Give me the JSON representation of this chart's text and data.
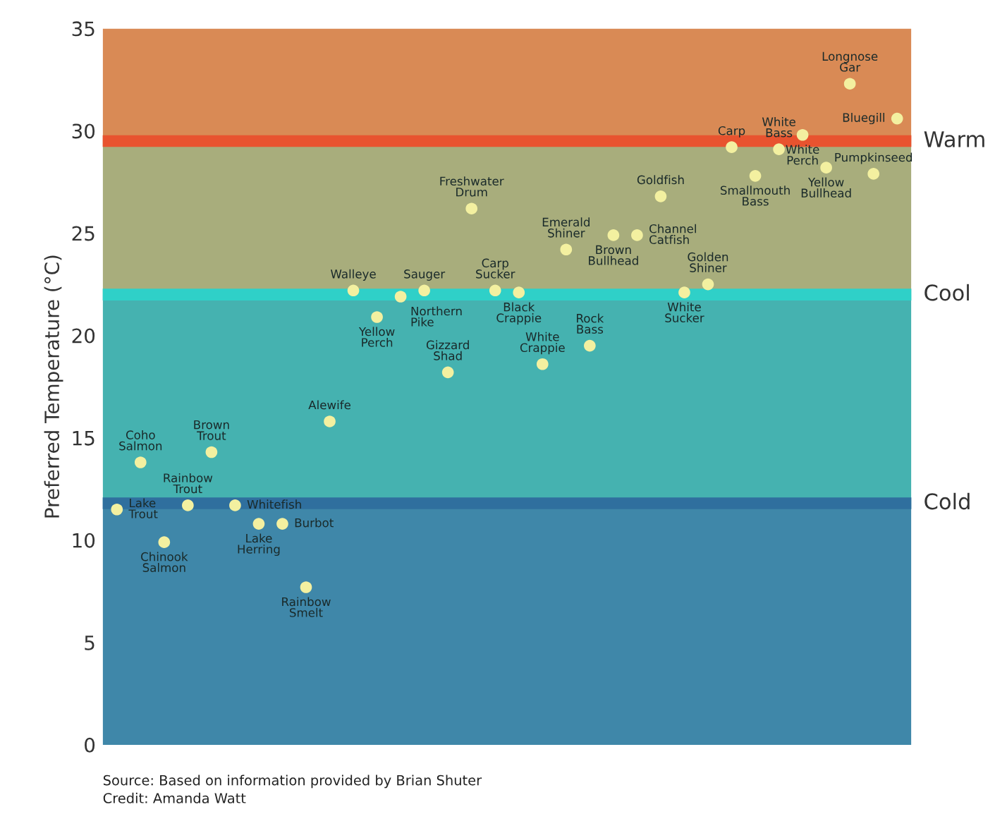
{
  "chart_data": {
    "type": "scatter",
    "ylabel": "Preferred Temperature (°C)",
    "categories": [
      null,
      null,
      null,
      null,
      null,
      null,
      null,
      null,
      null,
      null,
      null,
      null,
      null,
      null,
      null,
      null,
      null,
      null,
      null,
      null,
      null,
      null,
      null,
      null,
      null,
      null,
      null,
      null,
      null,
      null,
      null,
      null,
      null,
      null
    ],
    "series": [
      {
        "color": "#f3f0a0",
        "values": [
          11.5,
          13.8,
          9.9,
          11.7,
          14.3,
          11.7,
          10.8,
          10.8,
          7.7,
          15.8,
          22.2,
          20.9,
          21.9,
          22.2,
          18.2,
          26.2,
          22.2,
          22.1,
          18.6,
          24.2,
          19.5,
          24.9,
          24.9,
          26.8,
          22.1,
          22.5,
          29.2,
          27.8,
          29.1,
          29.8,
          28.2,
          32.3,
          27.9,
          30.6
        ],
        "value_labels": [
          "Lake Trout",
          "Coho Salmon",
          "Chinook Salmon",
          "Rainbow Trout",
          "Brown Trout",
          "Whitefish",
          "Lake Herring",
          "Burbot",
          "Rainbow Smelt",
          "Alewife",
          "Walleye",
          "Yellow Perch",
          "Northern Pike",
          "Sauger",
          "Gizzard Shad",
          "Freshwater Drum",
          "Carp Sucker",
          "Black Crappie",
          "White Crappie",
          "Emerald Shiner",
          "Rock Bass",
          "Brown Bullhead",
          "Channel Catfish",
          "Goldfish",
          "White Sucker",
          "Golden Shiner",
          "Carp",
          "Smallmouth Bass",
          "White Bass",
          "White Perch",
          "Yellow Bullhead",
          "Longnose Gar",
          "Pumpkinseed",
          "Bluegill"
        ]
      }
    ],
    "ylim": [
      0,
      35
    ],
    "yticks": [
      0,
      5,
      10,
      15,
      20,
      25,
      30,
      35
    ],
    "grid": false,
    "tick_labels": "y",
    "marker": "circle",
    "bands": [
      {
        "axis": "y",
        "from": 0,
        "to": 11.8,
        "color": "#3f87a9"
      },
      {
        "axis": "y",
        "from": 11.8,
        "to": 22,
        "color": "#45b2b0"
      },
      {
        "axis": "y",
        "from": 22,
        "to": 29.5,
        "color": "#a8ad7c"
      },
      {
        "axis": "y",
        "from": 29.5,
        "to": 35,
        "color": "#d98a55"
      }
    ],
    "ref_lines": [
      {
        "axis": "y",
        "value": 29.5,
        "label": "Warm",
        "color": "#e8532f"
      },
      {
        "axis": "y",
        "value": 22,
        "label": "Cool",
        "color": "#2fd0c8"
      },
      {
        "axis": "y",
        "value": 11.8,
        "label": "Cold",
        "color": "#2f6f9e"
      }
    ],
    "annotations": [
      "Source: Based on information provided by Brian Shuter",
      "Credit: Amanda Watt"
    ]
  }
}
